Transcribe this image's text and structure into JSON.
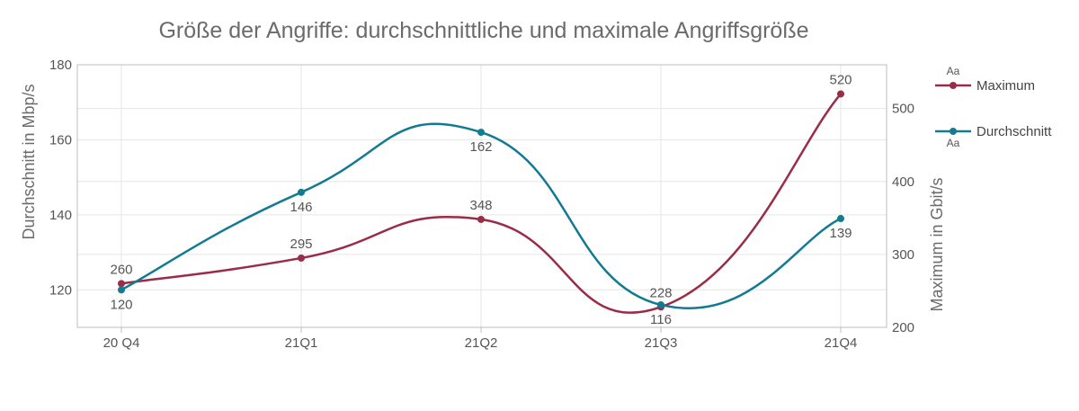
{
  "chart_data": {
    "type": "line",
    "title": "Größe der Angriffe: durchschnittliche und maximale Angriffsgröße",
    "categories": [
      "20 Q4",
      "21Q1",
      "21Q2",
      "21Q3",
      "21Q4"
    ],
    "y_left": {
      "label": "Durchschnitt in Mbp/s",
      "range": [
        110,
        180
      ],
      "ticks": [
        120,
        140,
        160,
        180
      ]
    },
    "y_right": {
      "label": "Maximum in Gbit/s",
      "range": [
        200,
        560
      ],
      "ticks": [
        200,
        300,
        400,
        500
      ]
    },
    "grid": true,
    "legend": {
      "position": "right",
      "marker_text": "Aa"
    },
    "series": [
      {
        "name": "Maximum",
        "axis": "right",
        "color": "#9b2c47",
        "values": [
          260,
          295,
          348,
          228,
          520
        ],
        "labels": [
          "260",
          "295",
          "348",
          "228",
          "520"
        ],
        "label_position": "above"
      },
      {
        "name": "Durchschnitt",
        "axis": "left",
        "color": "#127a91",
        "values": [
          120,
          146,
          162,
          116,
          139
        ],
        "labels": [
          "120",
          "146",
          "162",
          "116",
          "139"
        ],
        "label_position": "below"
      }
    ]
  }
}
